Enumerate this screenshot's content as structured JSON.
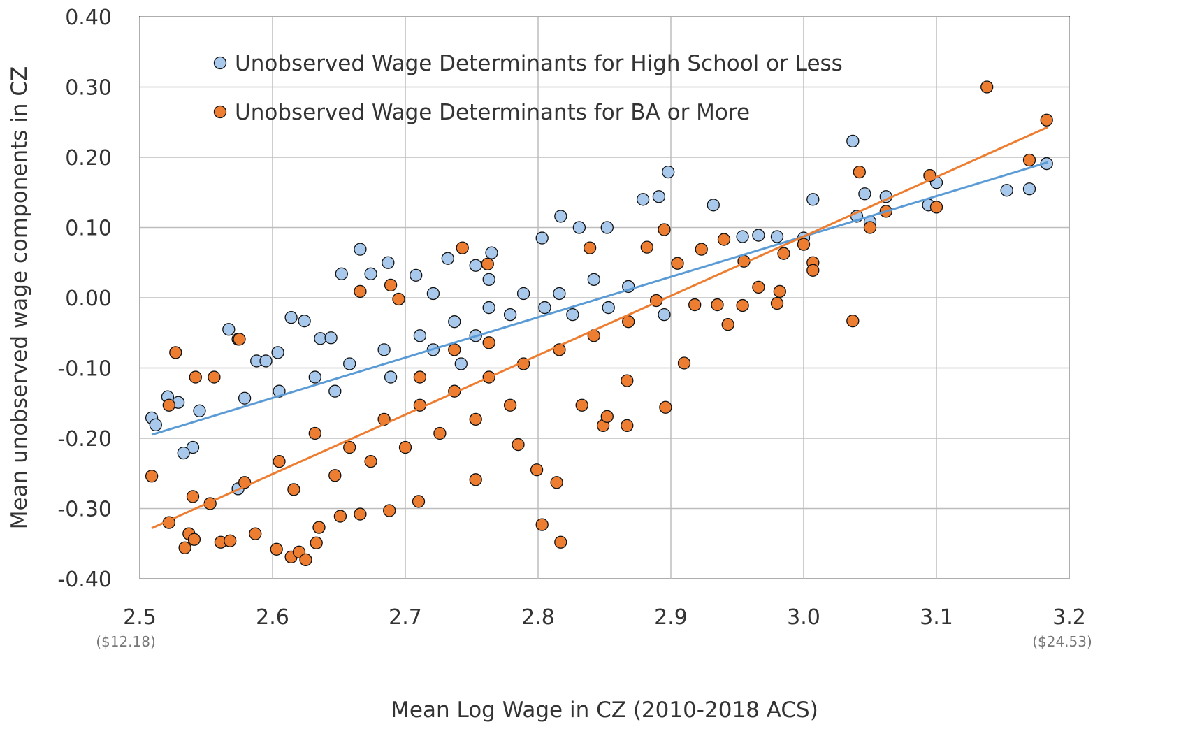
{
  "chart_data": {
    "type": "scatter",
    "xlabel": "Mean Log Wage in CZ (2010-2018 ACS)",
    "ylabel": "Mean unobserved wage components in CZ",
    "xlim": [
      2.5,
      3.2
    ],
    "xticks": [
      2.5,
      2.6,
      2.7,
      2.8,
      2.9,
      {
        "value": 3,
        "label": "3.0"
      },
      3.1,
      3.2
    ],
    "ylim": [
      -0.4,
      0.4
    ],
    "yticks": [
      {
        "value": -0.4,
        "label": "-0.40"
      },
      {
        "value": -0.3,
        "label": "-0.30"
      },
      {
        "value": -0.2,
        "label": "-0.20"
      },
      {
        "value": -0.1,
        "label": "-0.10"
      },
      {
        "value": 0,
        "label": "0.00"
      },
      {
        "value": 0.1,
        "label": "0.10"
      },
      {
        "value": 0.2,
        "label": "0.20"
      },
      {
        "value": 0.3,
        "label": "0.30"
      },
      {
        "value": 0.4,
        "label": "0.40"
      }
    ],
    "grid": true,
    "annotations": [
      "($12.18)",
      "($24.53)"
    ],
    "series": [
      {
        "name": "Unobserved Wage Determinants for High School or Less",
        "color": "#a9c9ec",
        "line_color": "#5b9bd5",
        "x": [
          3.037,
          2.898,
          3.183,
          3.153,
          3.17,
          3.094,
          3.095,
          3.1,
          3.007,
          3.046,
          3.062,
          3.04,
          3.05,
          2.932,
          2.879,
          2.891,
          2.817,
          2.852,
          2.831,
          2.803,
          2.954,
          2.966,
          2.98,
          3.0,
          2.666,
          2.652,
          2.765,
          2.708,
          2.687,
          2.674,
          2.567,
          2.574,
          2.614,
          2.624,
          2.636,
          2.644,
          2.509,
          2.512,
          2.521,
          2.529,
          2.545,
          2.54,
          2.533,
          2.588,
          2.595,
          2.604,
          2.574,
          2.711,
          2.737,
          2.763,
          2.789,
          2.816,
          2.842,
          2.868,
          2.895,
          2.684,
          2.658,
          2.632,
          2.605,
          2.579,
          2.721,
          2.753,
          2.779,
          2.805,
          2.826,
          2.853,
          2.742,
          2.689,
          2.647,
          2.763,
          2.721,
          2.753,
          2.732
        ],
        "values": [
          0.223,
          0.179,
          0.191,
          0.153,
          0.155,
          0.132,
          0.174,
          0.164,
          0.14,
          0.148,
          0.144,
          0.116,
          0.108,
          0.132,
          0.14,
          0.144,
          0.116,
          0.1,
          0.1,
          0.085,
          0.087,
          0.089,
          0.087,
          0.085,
          0.069,
          0.034,
          0.064,
          0.032,
          0.05,
          0.034,
          -0.045,
          -0.059,
          -0.028,
          -0.033,
          -0.058,
          -0.057,
          -0.171,
          -0.181,
          -0.141,
          -0.149,
          -0.161,
          -0.213,
          -0.221,
          -0.09,
          -0.09,
          -0.078,
          -0.272,
          -0.054,
          -0.034,
          -0.014,
          0.006,
          0.006,
          0.026,
          0.016,
          -0.024,
          -0.074,
          -0.094,
          -0.113,
          -0.133,
          -0.143,
          -0.074,
          -0.054,
          -0.024,
          -0.014,
          -0.024,
          -0.014,
          -0.094,
          -0.113,
          -0.133,
          0.026,
          0.006,
          0.046,
          0.056
        ],
        "trend": {
          "x": [
            2.509,
            3.184
          ],
          "values": [
            -0.195,
            0.193
          ]
        }
      },
      {
        "name": "Unobserved Wage Determinants for BA or More",
        "color": "#ed7d31",
        "line_color": "#ed7d31",
        "x": [
          3.138,
          3.183,
          3.17,
          3.095,
          3.1,
          3.042,
          3.05,
          3.062,
          3.037,
          3.007,
          3.007,
          3.0,
          2.985,
          2.98,
          2.982,
          2.966,
          2.954,
          2.943,
          2.935,
          2.918,
          2.923,
          2.94,
          2.955,
          2.895,
          2.905,
          2.91,
          2.896,
          2.882,
          2.839,
          2.743,
          2.762,
          2.689,
          2.666,
          2.695,
          2.527,
          2.575,
          2.542,
          2.556,
          2.522,
          2.509,
          2.522,
          2.54,
          2.534,
          2.537,
          2.541,
          2.561,
          2.568,
          2.587,
          2.603,
          2.614,
          2.62,
          2.625,
          2.633,
          2.635,
          2.651,
          2.666,
          2.688,
          2.71,
          2.753,
          2.799,
          2.814,
          2.803,
          2.817,
          2.785,
          2.867,
          2.849,
          2.852,
          2.867,
          2.833,
          2.632,
          2.658,
          2.684,
          2.711,
          2.737,
          2.763,
          2.789,
          2.816,
          2.842,
          2.868,
          2.889,
          2.605,
          2.579,
          2.553,
          2.616,
          2.647,
          2.674,
          2.7,
          2.726,
          2.753,
          2.779,
          2.711,
          2.737,
          2.763
        ],
        "values": [
          0.3,
          0.253,
          0.196,
          0.174,
          0.129,
          0.179,
          0.1,
          0.123,
          -0.033,
          0.05,
          0.039,
          0.076,
          0.063,
          -0.008,
          0.009,
          0.015,
          -0.011,
          -0.038,
          -0.01,
          -0.01,
          0.069,
          0.083,
          0.052,
          0.097,
          0.049,
          -0.093,
          -0.156,
          0.072,
          0.071,
          0.071,
          0.048,
          0.018,
          0.009,
          -0.002,
          -0.078,
          -0.059,
          -0.113,
          -0.113,
          -0.153,
          -0.254,
          -0.32,
          -0.283,
          -0.356,
          -0.336,
          -0.344,
          -0.348,
          -0.346,
          -0.336,
          -0.358,
          -0.369,
          -0.362,
          -0.373,
          -0.349,
          -0.327,
          -0.311,
          -0.308,
          -0.303,
          -0.29,
          -0.259,
          -0.245,
          -0.263,
          -0.323,
          -0.348,
          -0.209,
          -0.118,
          -0.182,
          -0.169,
          -0.182,
          -0.153,
          -0.193,
          -0.213,
          -0.173,
          -0.153,
          -0.133,
          -0.113,
          -0.094,
          -0.074,
          -0.054,
          -0.034,
          -0.004,
          -0.233,
          -0.263,
          -0.293,
          -0.273,
          -0.253,
          -0.233,
          -0.213,
          -0.193,
          -0.173,
          -0.153,
          -0.113,
          -0.074,
          -0.064
        ],
        "trend": {
          "x": [
            2.509,
            3.184
          ],
          "values": [
            -0.328,
            0.243
          ]
        }
      }
    ]
  }
}
